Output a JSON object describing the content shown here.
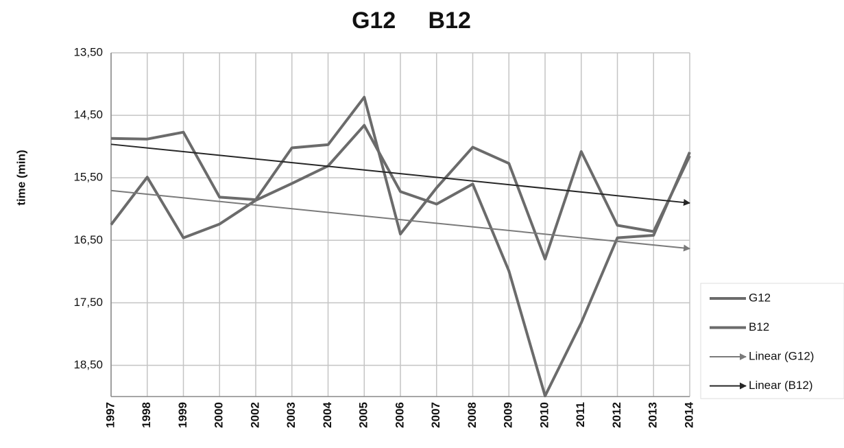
{
  "chart_data": {
    "type": "line",
    "title": "G12     B12",
    "y_label": "time (min)",
    "categories": [
      "1997",
      "1998",
      "1999",
      "2000",
      "2002",
      "2003",
      "2004",
      "2005",
      "2006",
      "2007",
      "2008",
      "2009",
      "2010",
      "2011",
      "2012",
      "2013",
      "2014"
    ],
    "series": [
      {
        "name": "G12",
        "color": "#6b6b6b",
        "values": [
          16.25,
          15.49,
          16.46,
          16.24,
          15.86,
          15.59,
          15.31,
          14.66,
          15.72,
          15.92,
          15.6,
          16.99,
          18.99,
          17.82,
          16.46,
          16.42,
          15.09
        ]
      },
      {
        "name": "B12",
        "color": "#6b6b6b",
        "values": [
          14.87,
          14.88,
          14.77,
          15.81,
          15.85,
          15.02,
          14.97,
          14.21,
          16.4,
          15.66,
          15.01,
          15.27,
          16.8,
          15.08,
          16.26,
          16.36,
          15.15
        ]
      }
    ],
    "trendlines": [
      {
        "name": "Linear (G12)",
        "color": "#7a7a7a",
        "series": 0
      },
      {
        "name": "Linear (B12)",
        "color": "#262626",
        "series": 1
      }
    ],
    "ylim": [
      19,
      13.5
    ],
    "yticks": [
      {
        "value": 13.5,
        "label": "13,50"
      },
      {
        "value": 14.5,
        "label": "14,50"
      },
      {
        "value": 15.5,
        "label": "15,50"
      },
      {
        "value": 16.5,
        "label": "16,50"
      },
      {
        "value": 17.5,
        "label": "17,50"
      },
      {
        "value": 18.5,
        "label": "18,50"
      }
    ],
    "grid": true
  }
}
